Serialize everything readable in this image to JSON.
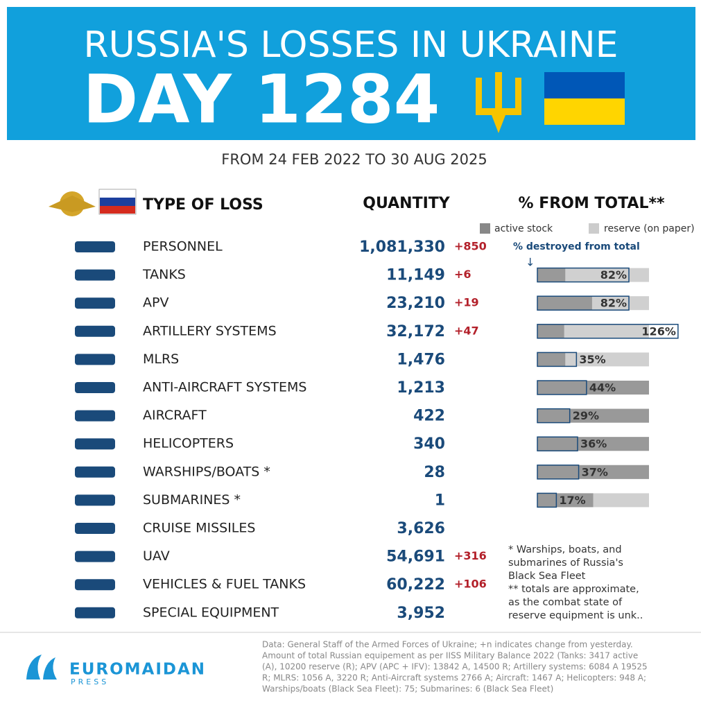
{
  "header": {
    "title": "RUSSIA'S LOSSES IN UKRAINE",
    "day": "DAY 1284",
    "period": "FROM 24 FEB 2022 TO 30 AUG 2025"
  },
  "columns": {
    "type": "TYPE OF LOSS",
    "quantity": "QUANTITY",
    "percent": "% FROM TOTAL**"
  },
  "legend": {
    "active": "active stock",
    "reserve": "reserve (on paper)",
    "destroyed": "% destroyed from total"
  },
  "rows": [
    {
      "label": "PERSONNEL",
      "quantity": "1,081,330",
      "change": "+850"
    },
    {
      "label": "TANKS",
      "quantity": "11,149",
      "change": "+6",
      "pct": 82,
      "pct_label": "82%",
      "active_share": 25
    },
    {
      "label": "APV",
      "quantity": "23,210",
      "change": "+19",
      "pct": 82,
      "pct_label": "82%",
      "active_share": 49
    },
    {
      "label": "ARTILLERY SYSTEMS",
      "quantity": "32,172",
      "change": "+47",
      "pct": 126,
      "pct_label": "126%",
      "active_share": 24
    },
    {
      "label": "MLRS",
      "quantity": "1,476",
      "pct": 35,
      "pct_label": "35%",
      "active_share": 25
    },
    {
      "label": "ANTI-AIRCRAFT SYSTEMS",
      "quantity": "1,213",
      "pct": 44,
      "pct_label": "44%",
      "active_share": 100
    },
    {
      "label": "AIRCRAFT",
      "quantity": "422",
      "pct": 29,
      "pct_label": "29%",
      "active_share": 100
    },
    {
      "label": "HELICOPTERS",
      "quantity": "340",
      "pct": 36,
      "pct_label": "36%",
      "active_share": 100
    },
    {
      "label": "WARSHIPS/BOATS *",
      "quantity": "28",
      "pct": 37,
      "pct_label": "37%",
      "active_share": 100
    },
    {
      "label": "SUBMARINES *",
      "quantity": "1",
      "pct": 17,
      "pct_label": "17%",
      "active_share": 50
    },
    {
      "label": "CRUISE MISSILES",
      "quantity": "3,626"
    },
    {
      "label": "UAV",
      "quantity": "54,691",
      "change": "+316"
    },
    {
      "label": "VEHICLES & FUEL TANKS",
      "quantity": "60,222",
      "change": "+106"
    },
    {
      "label": "SPECIAL EQUIPMENT",
      "quantity": "3,952"
    }
  ],
  "notes": [
    "* Warships, boats, and",
    "submarines of Russia's",
    "Black Sea Fleet",
    "** totals are approximate,",
    "as the combat state of",
    "reserve equipment is unk.."
  ],
  "footer": {
    "brand": "EUROMAIDAN",
    "brand_sub": "PRESS",
    "source": [
      "Data: General Staff of the Armed Forces of Ukraine; +n indicates change from yesterday.",
      "Amount of total Russian equipement as per IISS Military Balance 2022 (Tanks: 3417 active",
      "(A), 10200 reserve (R); APV (APC + IFV): 13842 A, 14500 R; Artillery systems: 6084 A 19525",
      "R; MLRS: 1056 A, 3220 R; Anti-Aircraft systems 2766 A; Aircraft: 1467 A; Helicopters: 948 A;",
      "Warships/boats (Black Sea Fleet): 75; Submarines: 6 (Black Sea Fleet)"
    ]
  }
}
